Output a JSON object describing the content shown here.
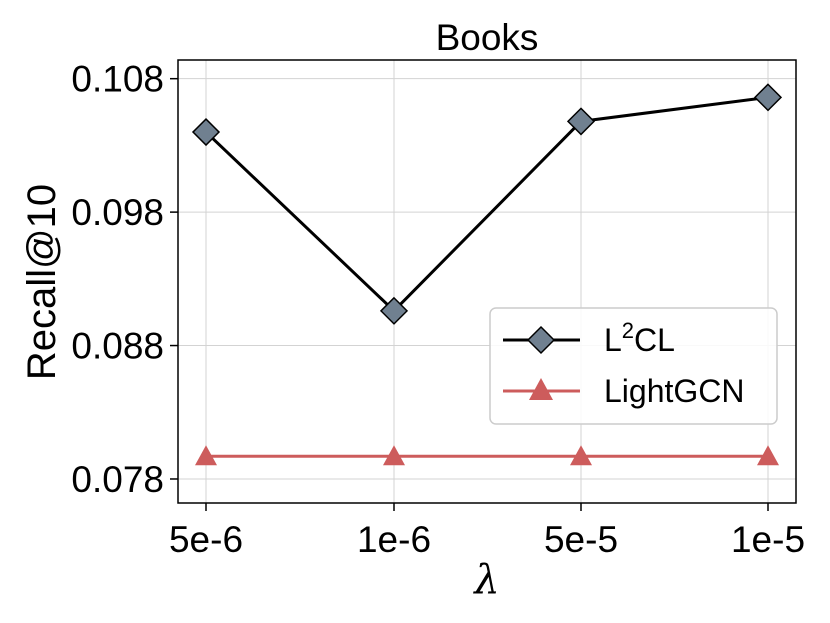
{
  "chart_data": {
    "type": "line",
    "title": "Books",
    "xlabel": "λ",
    "ylabel": "Recall@10",
    "categories": [
      "5e-6",
      "1e-6",
      "5e-5",
      "1e-5"
    ],
    "y_ticks": [
      "0.078",
      "0.088",
      "0.098",
      "0.108"
    ],
    "ylim": [
      0.0762,
      0.1094
    ],
    "grid": true,
    "legend_position": "center-right",
    "series": [
      {
        "name": "L²CL",
        "legend_base": "L",
        "legend_sup": "2",
        "legend_rest": "CL",
        "values": [
          0.104,
          0.0906,
          0.1048,
          0.1066
        ],
        "color": "#000000",
        "marker": "diamond",
        "marker_fill": "#708090"
      },
      {
        "name": "LightGCN",
        "values": [
          0.0797,
          0.0797,
          0.0797,
          0.0797
        ],
        "color": "#cd5c5c",
        "marker": "triangle",
        "marker_fill": "#cd5c5c"
      }
    ]
  }
}
